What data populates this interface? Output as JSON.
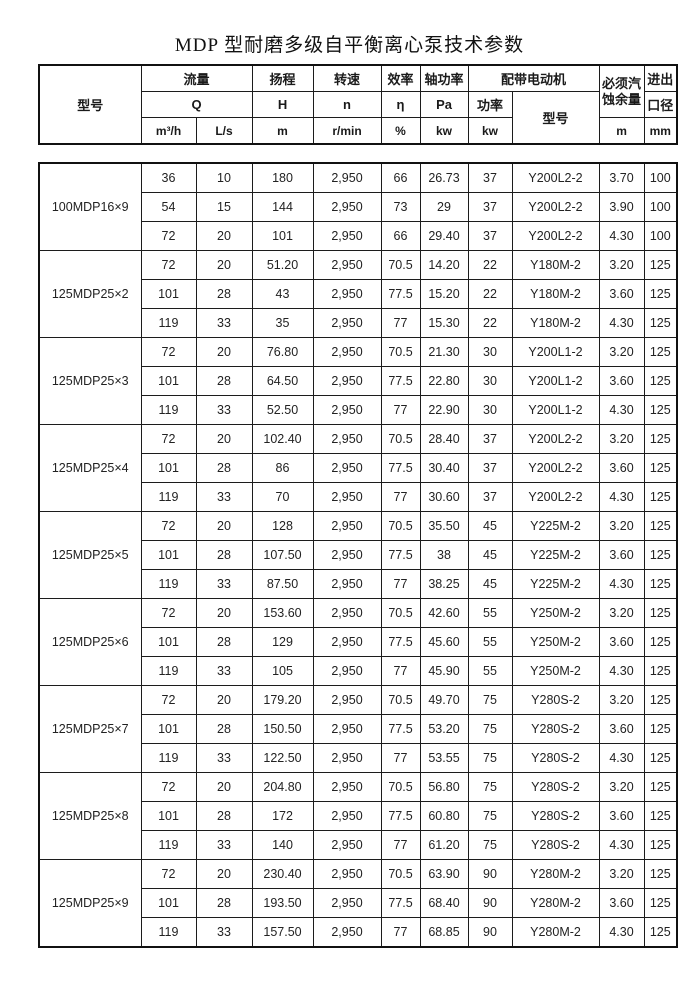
{
  "page": {
    "title": "MDP 型耐磨多级自平衡离心泵技术参数"
  },
  "table": {
    "header": {
      "model": "型号",
      "flow": "流量",
      "flow_symbol": "Q",
      "flow_unit_m3h": "m³/h",
      "flow_unit_ls": "L/s",
      "head": "扬程",
      "head_symbol": "H",
      "head_unit": "m",
      "speed": "转速",
      "speed_symbol": "n",
      "speed_unit": "r/min",
      "efficiency": "效率",
      "efficiency_symbol": "η",
      "efficiency_unit": "%",
      "shaft_power": "轴功率",
      "shaft_power_symbol": "Pa",
      "shaft_power_unit": "kw",
      "motor": "配带电动机",
      "motor_power": "功率",
      "motor_power_unit": "kw",
      "motor_model": "型号",
      "npsh_line1": "必须汽",
      "npsh_line2": "蚀余量",
      "npsh_unit": "m",
      "bore_line1": "进出",
      "bore_line2": "口径",
      "bore_unit": "mm"
    },
    "groups": [
      {
        "model": "100MDP16×9",
        "rows": [
          [
            "36",
            "10",
            "180",
            "2,950",
            "66",
            "26.73",
            "37",
            "Y200L2-2",
            "3.70",
            "100"
          ],
          [
            "54",
            "15",
            "144",
            "2,950",
            "73",
            "29",
            "37",
            "Y200L2-2",
            "3.90",
            "100"
          ],
          [
            "72",
            "20",
            "101",
            "2,950",
            "66",
            "29.40",
            "37",
            "Y200L2-2",
            "4.30",
            "100"
          ]
        ]
      },
      {
        "model": "125MDP25×2",
        "rows": [
          [
            "72",
            "20",
            "51.20",
            "2,950",
            "70.5",
            "14.20",
            "22",
            "Y180M-2",
            "3.20",
            "125"
          ],
          [
            "101",
            "28",
            "43",
            "2,950",
            "77.5",
            "15.20",
            "22",
            "Y180M-2",
            "3.60",
            "125"
          ],
          [
            "119",
            "33",
            "35",
            "2,950",
            "77",
            "15.30",
            "22",
            "Y180M-2",
            "4.30",
            "125"
          ]
        ]
      },
      {
        "model": "125MDP25×3",
        "rows": [
          [
            "72",
            "20",
            "76.80",
            "2,950",
            "70.5",
            "21.30",
            "30",
            "Y200L1-2",
            "3.20",
            "125"
          ],
          [
            "101",
            "28",
            "64.50",
            "2,950",
            "77.5",
            "22.80",
            "30",
            "Y200L1-2",
            "3.60",
            "125"
          ],
          [
            "119",
            "33",
            "52.50",
            "2,950",
            "77",
            "22.90",
            "30",
            "Y200L1-2",
            "4.30",
            "125"
          ]
        ]
      },
      {
        "model": "125MDP25×4",
        "rows": [
          [
            "72",
            "20",
            "102.40",
            "2,950",
            "70.5",
            "28.40",
            "37",
            "Y200L2-2",
            "3.20",
            "125"
          ],
          [
            "101",
            "28",
            "86",
            "2,950",
            "77.5",
            "30.40",
            "37",
            "Y200L2-2",
            "3.60",
            "125"
          ],
          [
            "119",
            "33",
            "70",
            "2,950",
            "77",
            "30.60",
            "37",
            "Y200L2-2",
            "4.30",
            "125"
          ]
        ]
      },
      {
        "model": "125MDP25×5",
        "rows": [
          [
            "72",
            "20",
            "128",
            "2,950",
            "70.5",
            "35.50",
            "45",
            "Y225M-2",
            "3.20",
            "125"
          ],
          [
            "101",
            "28",
            "107.50",
            "2,950",
            "77.5",
            "38",
            "45",
            "Y225M-2",
            "3.60",
            "125"
          ],
          [
            "119",
            "33",
            "87.50",
            "2,950",
            "77",
            "38.25",
            "45",
            "Y225M-2",
            "4.30",
            "125"
          ]
        ]
      },
      {
        "model": "125MDP25×6",
        "rows": [
          [
            "72",
            "20",
            "153.60",
            "2,950",
            "70.5",
            "42.60",
            "55",
            "Y250M-2",
            "3.20",
            "125"
          ],
          [
            "101",
            "28",
            "129",
            "2,950",
            "77.5",
            "45.60",
            "55",
            "Y250M-2",
            "3.60",
            "125"
          ],
          [
            "119",
            "33",
            "105",
            "2,950",
            "77",
            "45.90",
            "55",
            "Y250M-2",
            "4.30",
            "125"
          ]
        ]
      },
      {
        "model": "125MDP25×7",
        "rows": [
          [
            "72",
            "20",
            "179.20",
            "2,950",
            "70.5",
            "49.70",
            "75",
            "Y280S-2",
            "3.20",
            "125"
          ],
          [
            "101",
            "28",
            "150.50",
            "2,950",
            "77.5",
            "53.20",
            "75",
            "Y280S-2",
            "3.60",
            "125"
          ],
          [
            "119",
            "33",
            "122.50",
            "2,950",
            "77",
            "53.55",
            "75",
            "Y280S-2",
            "4.30",
            "125"
          ]
        ]
      },
      {
        "model": "125MDP25×8",
        "rows": [
          [
            "72",
            "20",
            "204.80",
            "2,950",
            "70.5",
            "56.80",
            "75",
            "Y280S-2",
            "3.20",
            "125"
          ],
          [
            "101",
            "28",
            "172",
            "2,950",
            "77.5",
            "60.80",
            "75",
            "Y280S-2",
            "3.60",
            "125"
          ],
          [
            "119",
            "33",
            "140",
            "2,950",
            "77",
            "61.20",
            "75",
            "Y280S-2",
            "4.30",
            "125"
          ]
        ]
      },
      {
        "model": "125MDP25×9",
        "rows": [
          [
            "72",
            "20",
            "230.40",
            "2,950",
            "70.5",
            "63.90",
            "90",
            "Y280M-2",
            "3.20",
            "125"
          ],
          [
            "101",
            "28",
            "193.50",
            "2,950",
            "77.5",
            "68.40",
            "90",
            "Y280M-2",
            "3.60",
            "125"
          ],
          [
            "119",
            "33",
            "157.50",
            "2,950",
            "77",
            "68.85",
            "90",
            "Y280M-2",
            "4.30",
            "125"
          ]
        ]
      }
    ]
  }
}
